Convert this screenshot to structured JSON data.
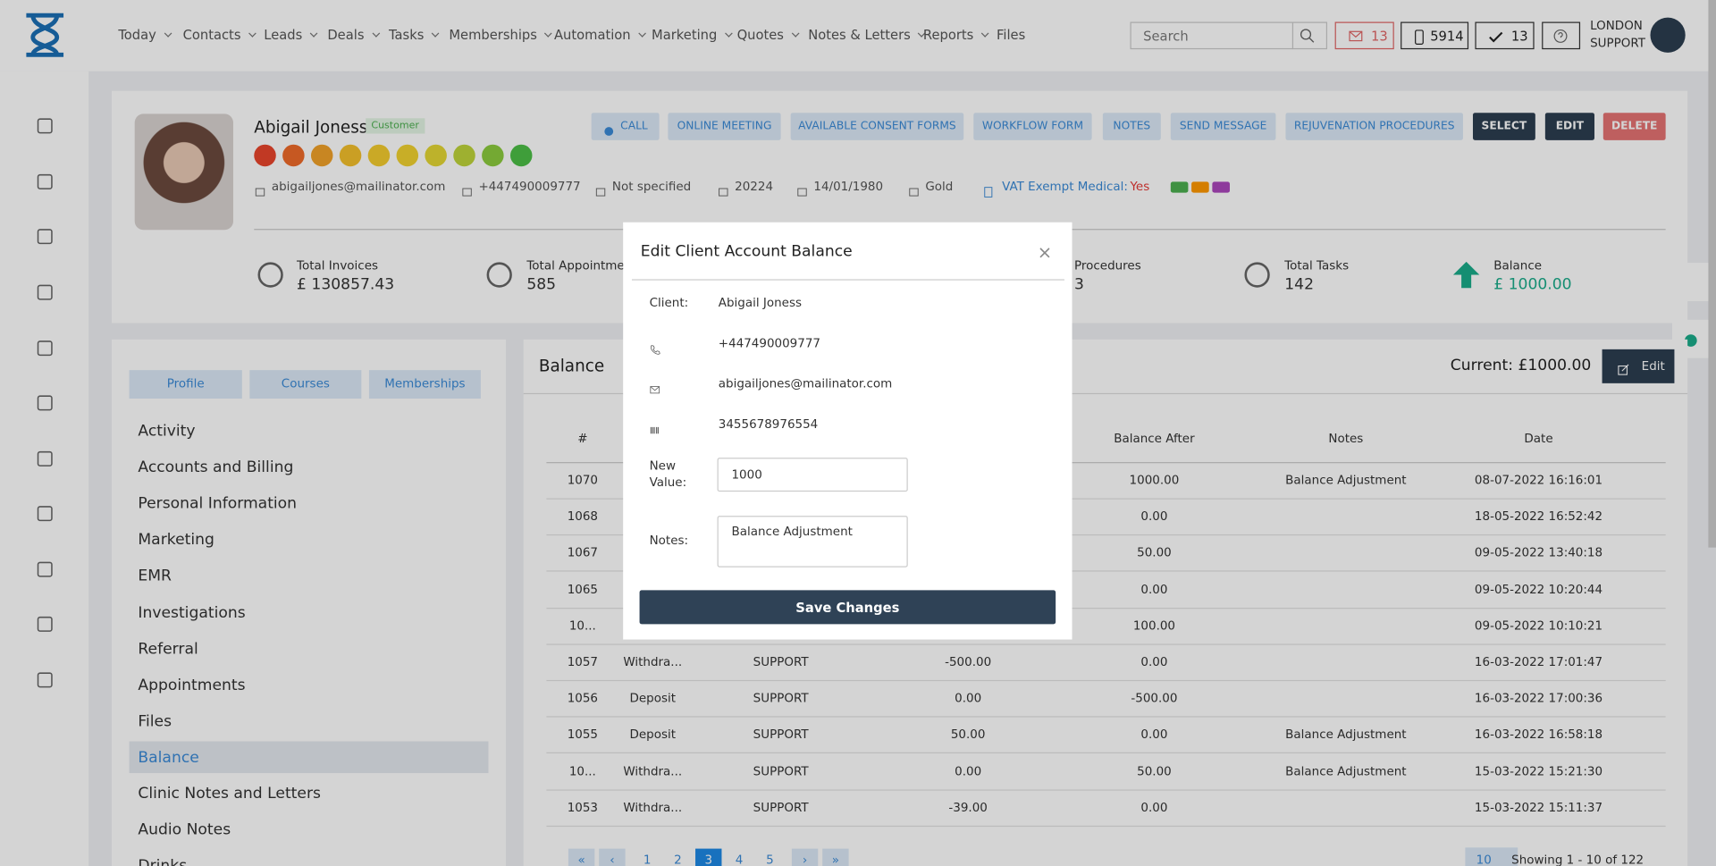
{
  "nav": {
    "menu": [
      "Today",
      "Contacts",
      "Leads",
      "Deals",
      "Tasks",
      "Memberships",
      "Automation",
      "Marketing",
      "Quotes",
      "Notes & Letters",
      "Reports",
      "Files"
    ],
    "search": "Search",
    "mail_count": 13,
    "phone_count": 5914,
    "check_count": 13,
    "user_line1": "LONDON",
    "user_line2": "SUPPORT"
  },
  "client": {
    "name": "Abigail Joness",
    "badge": "Customer",
    "actions": [
      "CALL",
      "ONLINE MEETING",
      "AVAILABLE CONSENT FORMS",
      "WORKFLOW FORM",
      "NOTES",
      "SEND MESSAGE",
      "REJUVENATION PROCEDURES",
      "SELECT",
      "EDIT",
      "DELETE"
    ],
    "email": "abigailjones@mailinator.com",
    "phone": "+447490009777",
    "gender": "Not specified",
    "id": "20224",
    "dob": "14/01/1980",
    "tier": "Gold",
    "vat_label": "VAT Exempt Medical:",
    "vat_value": "Yes"
  },
  "stats": [
    {
      "label": "Total Invoices",
      "value": "£ 130857.43"
    },
    {
      "label": "Total Appointments",
      "value": "585"
    },
    {
      "label": "Procedures",
      "value": "3"
    },
    {
      "label": "Total Tasks",
      "value": "142"
    },
    {
      "label": "Balance",
      "value": "£ 1000.00"
    }
  ],
  "sidebar": {
    "tabs": [
      "Profile",
      "Courses",
      "Memberships"
    ],
    "menu": [
      "Activity",
      "Accounts and Billing",
      "Personal Information",
      "Marketing",
      "EMR",
      "Investigations",
      "Referral",
      "Appointments",
      "Files",
      "Balance",
      "Clinic Notes and Letters",
      "Audio Notes",
      "Drinks"
    ],
    "active": 9
  },
  "balance": {
    "title": "Balance",
    "current": "Current: £1000.00",
    "edit": "Edit",
    "headers": [
      "#",
      "Balance After",
      "Notes",
      "Date"
    ],
    "rows": [
      {
        "id": "1070",
        "after": "1000.00",
        "notes": "Balance Adjustment",
        "date": "08-07-2022 16:16:01"
      },
      {
        "id": "1068",
        "after": "0.00",
        "date": "18-05-2022 16:52:42"
      },
      {
        "id": "1067",
        "after": "50.00",
        "date": "09-05-2022 13:40:18"
      },
      {
        "id": "1065",
        "after": "0.00",
        "date": "09-05-2022 10:20:44"
      },
      {
        "id": "10...",
        "after": "100.00",
        "date": "09-05-2022 10:10:21"
      },
      {
        "id": "1057",
        "type": "Withdra...",
        "user": "SUPPORT",
        "amount": "-500.00",
        "after": "0.00",
        "date": "16-03-2022 17:01:47"
      },
      {
        "id": "1056",
        "type": "Deposit",
        "user": "SUPPORT",
        "amount": "0.00",
        "after": "-500.00",
        "date": "16-03-2022 17:00:36"
      },
      {
        "id": "1055",
        "type": "Deposit",
        "user": "SUPPORT",
        "amount": "50.00",
        "after": "0.00",
        "notes": "Balance Adjustment",
        "date": "16-03-2022 16:58:18"
      },
      {
        "id": "10...",
        "type": "Withdra...",
        "user": "SUPPORT",
        "amount": "0.00",
        "after": "50.00",
        "notes": "Balance Adjustment",
        "date": "15-03-2022 15:21:30"
      },
      {
        "id": "1053",
        "type": "Withdra...",
        "user": "SUPPORT",
        "amount": "-39.00",
        "after": "0.00",
        "date": "15-03-2022 15:11:37"
      }
    ],
    "pages": [
      "«",
      "‹",
      "1",
      "2",
      "3",
      "4",
      "5",
      "›",
      "»"
    ],
    "page_size": "10",
    "showing": "Showing 1 - 10 of 122"
  },
  "modal": {
    "title": "Edit Client Account Balance",
    "close": "×",
    "client_label": "Client:",
    "client": "Abigail Joness",
    "phone": "+447490009777",
    "email": "abigailjones@mailinator.com",
    "card": "3455678976554",
    "new_value_label": "New Value:",
    "new_value": "1000",
    "notes_label": "Notes:",
    "notes": "Balance Adjustment",
    "save": "Save Changes"
  }
}
